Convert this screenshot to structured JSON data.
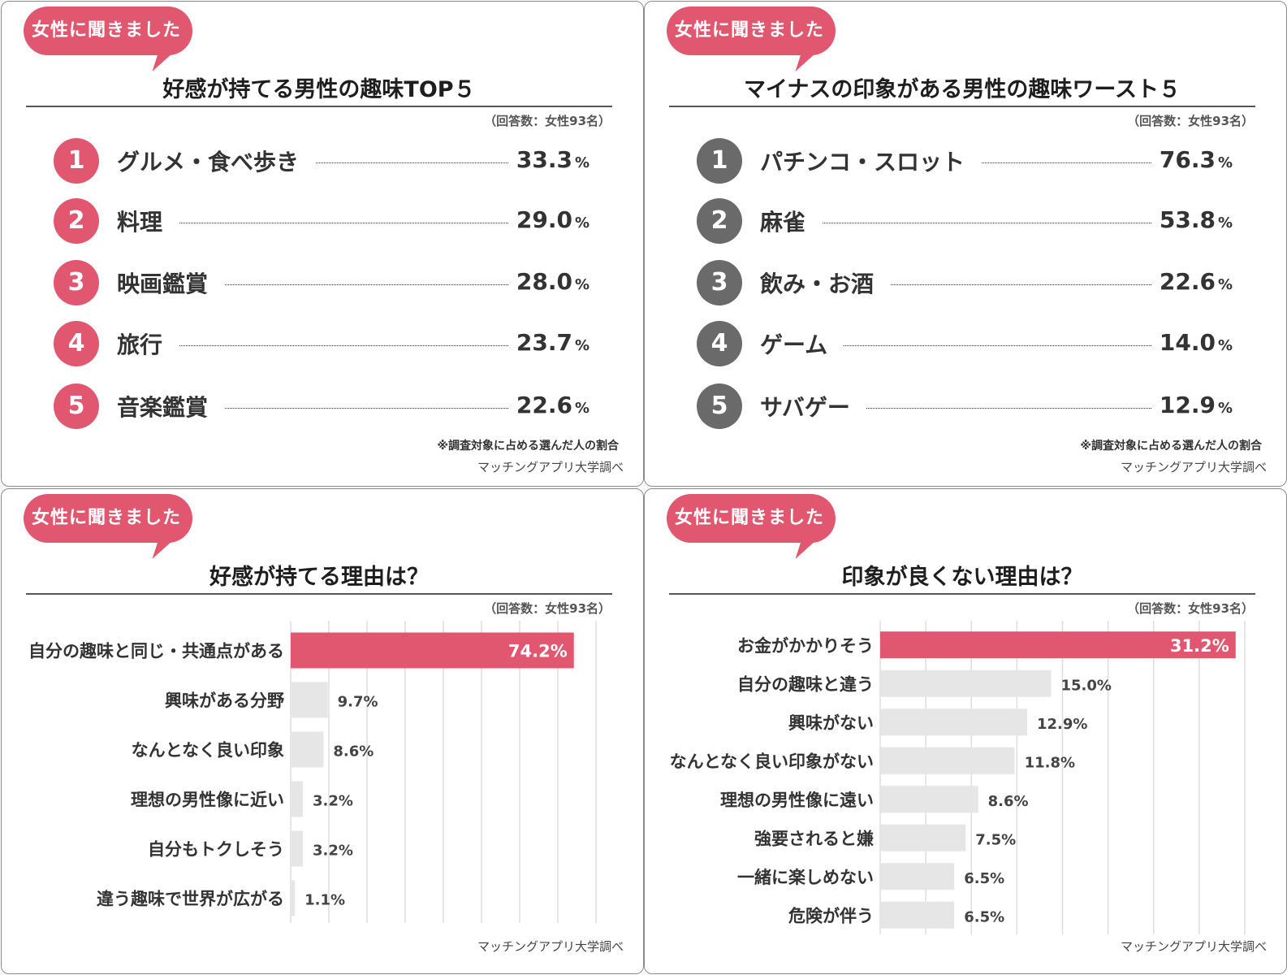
{
  "bubble_text": "女性に聞きました",
  "respondents": "（回答数：女性93名）",
  "note": "※調査対象に占める選んだ人の割合",
  "source": "マッチングアプリ大学調べ",
  "colors": {
    "accent": "#e0576f",
    "rank_gray": "#6a6a6a",
    "bar_gray": "#e6e6e6"
  },
  "panels": {
    "top_good": {
      "title": "好感が持てる男性の趣味TOP５",
      "items": [
        {
          "rank": "1",
          "label": "グルメ・食べ歩き",
          "value": "33.3",
          "unit": "%"
        },
        {
          "rank": "2",
          "label": "料理",
          "value": "29.0",
          "unit": "%"
        },
        {
          "rank": "3",
          "label": "映画鑑賞",
          "value": "28.0",
          "unit": "%"
        },
        {
          "rank": "4",
          "label": "旅行",
          "value": "23.7",
          "unit": "%"
        },
        {
          "rank": "5",
          "label": "音楽鑑賞",
          "value": "22.6",
          "unit": "%"
        }
      ]
    },
    "top_bad": {
      "title": "マイナスの印象がある男性の趣味ワースト５",
      "items": [
        {
          "rank": "1",
          "label": "パチンコ・スロット",
          "value": "76.3",
          "unit": "%"
        },
        {
          "rank": "2",
          "label": "麻雀",
          "value": "53.8",
          "unit": "%"
        },
        {
          "rank": "3",
          "label": "飲み・お酒",
          "value": "22.6",
          "unit": "%"
        },
        {
          "rank": "4",
          "label": "ゲーム",
          "value": "14.0",
          "unit": "%"
        },
        {
          "rank": "5",
          "label": "サバゲー",
          "value": "12.9",
          "unit": "%"
        }
      ]
    },
    "reasons_good": {
      "title": "好感が持てる理由は？"
    },
    "reasons_bad": {
      "title": "印象が良くない理由は？"
    }
  },
  "chart_data": [
    {
      "type": "table",
      "title": "好感が持てる男性の趣味TOP５",
      "columns": [
        "rank",
        "hobby",
        "percent"
      ],
      "rows": [
        [
          1,
          "グルメ・食べ歩き",
          33.3
        ],
        [
          2,
          "料理",
          29.0
        ],
        [
          3,
          "映画鑑賞",
          28.0
        ],
        [
          4,
          "旅行",
          23.7
        ],
        [
          5,
          "音楽鑑賞",
          22.6
        ]
      ]
    },
    {
      "type": "table",
      "title": "マイナスの印象がある男性の趣味ワースト５",
      "columns": [
        "rank",
        "hobby",
        "percent"
      ],
      "rows": [
        [
          1,
          "パチンコ・スロット",
          76.3
        ],
        [
          2,
          "麻雀",
          53.8
        ],
        [
          3,
          "飲み・お酒",
          22.6
        ],
        [
          4,
          "ゲーム",
          14.0
        ],
        [
          5,
          "サバゲー",
          12.9
        ]
      ]
    },
    {
      "type": "bar",
      "orientation": "horizontal",
      "title": "好感が持てる理由は？",
      "categories": [
        "自分の趣味と同じ・共通点がある",
        "興味がある分野",
        "なんとなく良い印象",
        "理想の男性像に近い",
        "自分もトクしそう",
        "違う趣味で世界が広がる"
      ],
      "values": [
        74.2,
        9.7,
        8.6,
        3.2,
        3.2,
        1.1
      ],
      "labels": [
        "74.2%",
        "9.7%",
        "8.6%",
        "3.2%",
        "3.2%",
        "1.1%"
      ],
      "xlim": [
        0,
        80
      ],
      "grid": true,
      "highlight_index": 0
    },
    {
      "type": "bar",
      "orientation": "horizontal",
      "title": "印象が良くない理由は？",
      "categories": [
        "お金がかかりそう",
        "自分の趣味と違う",
        "興味がない",
        "なんとなく良い印象がない",
        "理想の男性像に遠い",
        "強要されると嫌",
        "一緒に楽しめない",
        "危険が伴う"
      ],
      "values": [
        31.2,
        15.0,
        12.9,
        11.8,
        8.6,
        7.5,
        6.5,
        6.5
      ],
      "labels": [
        "31.2%",
        "15.0%",
        "12.9%",
        "11.8%",
        "8.6%",
        "7.5%",
        "6.5%",
        "6.5%"
      ],
      "xlim": [
        0,
        32
      ],
      "grid": true,
      "highlight_index": 0
    }
  ]
}
